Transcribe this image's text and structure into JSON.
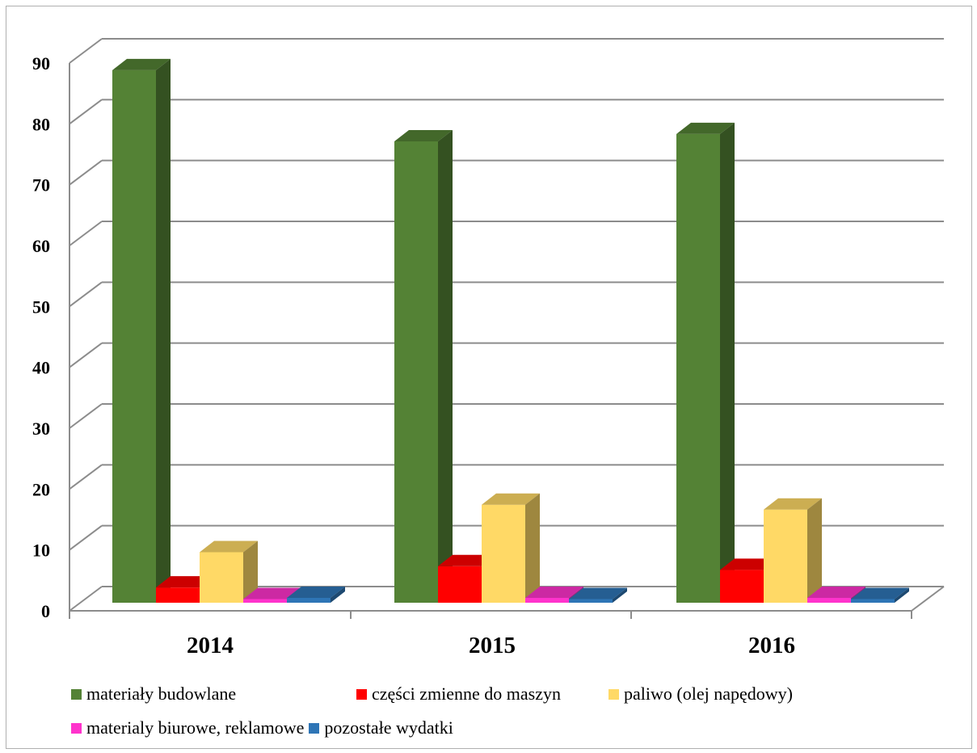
{
  "chart_data": {
    "type": "bar",
    "categories": [
      "2014",
      "2015",
      "2016"
    ],
    "series": [
      {
        "name": "materiały budowlane",
        "color": "#548235",
        "values": [
          87.5,
          75.8,
          77.0
        ]
      },
      {
        "name": "części zmienne do maszyn",
        "color": "#ff0000",
        "values": [
          2.5,
          6.0,
          5.4
        ]
      },
      {
        "name": "paliwo (olej napędowy)",
        "color": "#ffd966",
        "values": [
          8.3,
          16.1,
          15.3
        ]
      },
      {
        "name": "materialy biurowe, reklamowe",
        "color": "#ff33cc",
        "values": [
          0.6,
          0.8,
          0.8
        ]
      },
      {
        "name": "pozostałe wydatki",
        "color": "#2e75b6",
        "values": [
          0.8,
          0.6,
          0.6
        ]
      }
    ],
    "ylim": [
      0,
      90
    ],
    "yticks": [
      0,
      10,
      20,
      30,
      40,
      50,
      60,
      70,
      80,
      90
    ],
    "grid": true,
    "legend_position": "bottom",
    "style": "3d-clustered-column"
  }
}
